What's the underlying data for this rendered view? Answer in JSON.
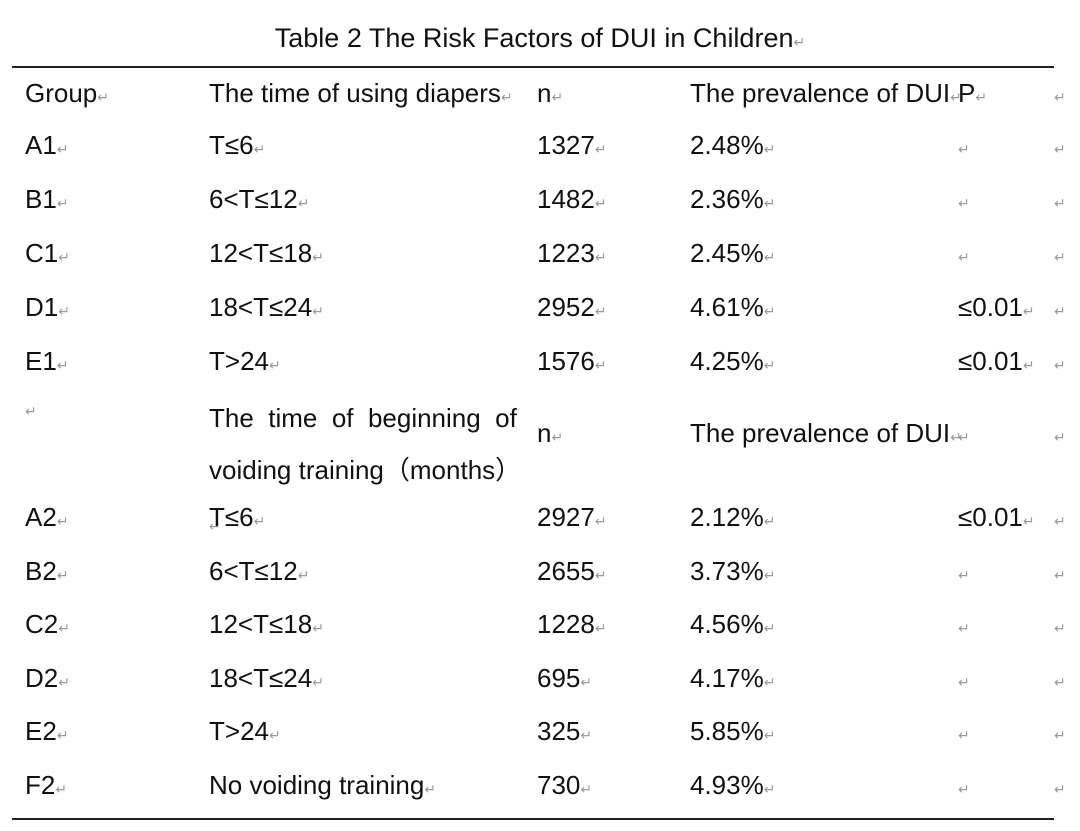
{
  "title": "Table 2 The Risk Factors of DUI in Children",
  "header1": {
    "group": "Group",
    "time": "The time of using diapers",
    "n": "n",
    "prevalence": "The prevalence of DUI",
    "p": "P"
  },
  "header2": {
    "group": "",
    "time_line1": "The  time  of  beginning  of",
    "time_line2": "voiding training（months）",
    "n": "n",
    "prevalence": "The prevalence of DUI",
    "p": ""
  },
  "section1_rows": [
    {
      "group": "A1",
      "time": "T≤6",
      "n": "1327",
      "prevalence": "2.48%",
      "p": ""
    },
    {
      "group": "B1",
      "time": "6<T≤12",
      "n": "1482",
      "prevalence": "2.36%",
      "p": ""
    },
    {
      "group": "C1",
      "time": "12<T≤18",
      "n": "1223",
      "prevalence": "2.45%",
      "p": ""
    },
    {
      "group": "D1",
      "time": "18<T≤24",
      "n": "2952",
      "prevalence": "4.61%",
      "p": "≤0.01"
    },
    {
      "group": "E1",
      "time": "T>24",
      "n": "1576",
      "prevalence": "4.25%",
      "p": "≤0.01"
    }
  ],
  "section2_rows": [
    {
      "group": "A2",
      "time": "T≤6",
      "n": "2927",
      "prevalence": "2.12%",
      "p": "≤0.01"
    },
    {
      "group": "B2",
      "time": "6<T≤12",
      "n": "2655",
      "prevalence": "3.73%",
      "p": ""
    },
    {
      "group": "C2",
      "time": "12<T≤18",
      "n": "1228",
      "prevalence": "4.56%",
      "p": ""
    },
    {
      "group": "D2",
      "time": "18<T≤24",
      "n": "695",
      "prevalence": "4.17%",
      "p": ""
    },
    {
      "group": "E2",
      "time": "T>24",
      "n": "325",
      "prevalence": "5.85%",
      "p": ""
    },
    {
      "group": "F2",
      "time": "No voiding training",
      "n": "730",
      "prevalence": "4.93%",
      "p": ""
    }
  ],
  "paragraph_mark": "↵"
}
